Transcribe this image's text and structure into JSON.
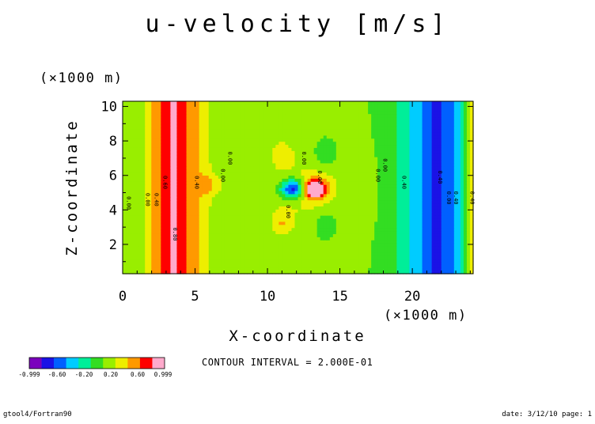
{
  "chart_data": {
    "type": "heatmap",
    "title": "u-velocity [m/s]",
    "xlabel": "X-coordinate",
    "ylabel": "Z-coordinate",
    "x_unit": "(×1000 m)",
    "y_unit": "(×1000 m)",
    "xlim": [
      0,
      24.2
    ],
    "ylim": [
      0.3,
      10.3
    ],
    "x_ticks": [
      0,
      5,
      10,
      15,
      20
    ],
    "y_ticks": [
      2,
      4,
      6,
      8,
      10
    ],
    "x_tick_labels": [
      "0",
      "5",
      "10",
      "15",
      "20"
    ],
    "y_tick_labels": [
      "2",
      "4",
      "6",
      "8",
      "10"
    ],
    "contour_interval_text": "CONTOUR INTERVAL = 2.000E-01",
    "contour_interval": 0.2,
    "colorbar": {
      "labels": [
        "-0.999",
        "-0.60",
        "-0.20",
        "0.20",
        "0.60",
        "0.999"
      ],
      "levels": [
        -0.999,
        -0.8,
        -0.6,
        -0.4,
        -0.2,
        0.0,
        0.2,
        0.4,
        0.6,
        0.8,
        0.999
      ],
      "colors": [
        "#7b00bd",
        "#1b12e6",
        "#0060ff",
        "#00ccff",
        "#00ee99",
        "#33dd22",
        "#99ee00",
        "#eeee00",
        "#ff9900",
        "#ff0000",
        "#ffaacc"
      ]
    },
    "contour_labels": [
      {
        "x": 0.3,
        "z": 4.4,
        "text": "0.00"
      },
      {
        "x": 1.6,
        "z": 4.6,
        "text": "0.00"
      },
      {
        "x": 2.2,
        "z": 4.6,
        "text": "0.40"
      },
      {
        "x": 2.8,
        "z": 5.6,
        "text": "0.60"
      },
      {
        "x": 3.5,
        "z": 2.6,
        "text": "0.80"
      },
      {
        "x": 5.0,
        "z": 5.6,
        "text": "0.40"
      },
      {
        "x": 6.8,
        "z": 6.0,
        "text": "0.00"
      },
      {
        "x": 7.3,
        "z": 7.0,
        "text": "0.00"
      },
      {
        "x": 12.4,
        "z": 7.0,
        "text": "0.00"
      },
      {
        "x": 13.5,
        "z": 5.9,
        "text": "0.00"
      },
      {
        "x": 11.3,
        "z": 3.9,
        "text": "0.00"
      },
      {
        "x": 17.5,
        "z": 6.0,
        "text": "0.00"
      },
      {
        "x": 18.0,
        "z": 6.6,
        "text": "0.00"
      },
      {
        "x": 19.3,
        "z": 5.6,
        "text": "0.40"
      },
      {
        "x": 21.8,
        "z": 5.9,
        "text": "0.40"
      },
      {
        "x": 22.4,
        "z": 4.7,
        "text": "0.00"
      },
      {
        "x": 22.9,
        "z": 4.7,
        "text": "0.40"
      },
      {
        "x": 24.0,
        "z": 4.7,
        "text": "0.40"
      }
    ]
  },
  "footer": {
    "left": "gtool4/Fortran90",
    "right": "date: 3/12/10 page: 1"
  }
}
